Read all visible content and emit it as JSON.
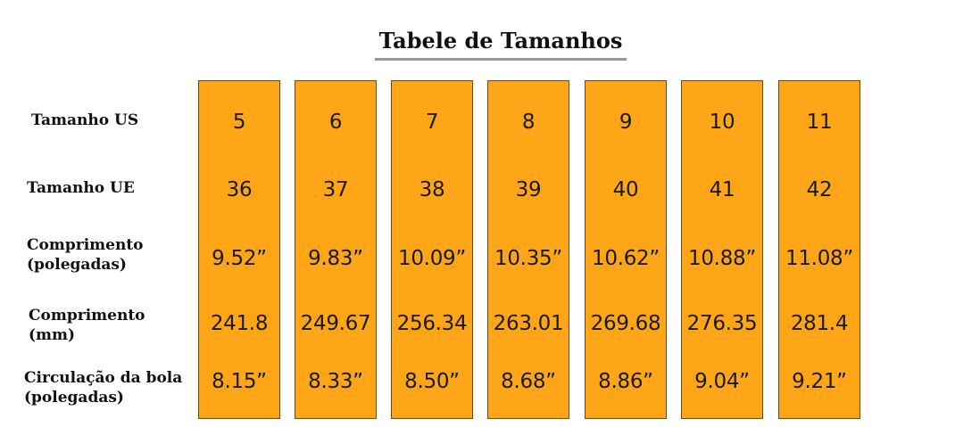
{
  "title": "Tabele de Tamanhos",
  "row_labels": [
    {
      "line1": "Tamanho US",
      "line2": ""
    },
    {
      "line1": "Tamanho UE",
      "line2": ""
    },
    {
      "line1": "Comprimento",
      "line2": "(polegadas)"
    },
    {
      "line1": "Comprimento",
      "line2": "(mm)"
    },
    {
      "line1": "Circulação da bola",
      "line2": "(polegadas)"
    }
  ],
  "columns": [
    {
      "us": "5",
      "eu": "36",
      "length_in": "9.52”",
      "length_mm": "241.8",
      "ball_in": "8.15”"
    },
    {
      "us": "6",
      "eu": "37",
      "length_in": "9.83”",
      "length_mm": "249.67",
      "ball_in": "8.33”"
    },
    {
      "us": "7",
      "eu": "38",
      "length_in": "10.09”",
      "length_mm": "256.34",
      "ball_in": "8.50”"
    },
    {
      "us": "8",
      "eu": "39",
      "length_in": "10.35”",
      "length_mm": "263.01",
      "ball_in": "8.68”"
    },
    {
      "us": "9",
      "eu": "40",
      "length_in": "10.62”",
      "length_mm": "269.68",
      "ball_in": "8.86”"
    },
    {
      "us": "10",
      "eu": "41",
      "length_in": "10.88”",
      "length_mm": "276.35",
      "ball_in": "9.04”"
    },
    {
      "us": "11",
      "eu": "42",
      "length_in": "11.08”",
      "length_mm": "281.4",
      "ball_in": "9.21”"
    }
  ],
  "colors": {
    "column_fill": "#fea617",
    "column_border": "#6b4a10",
    "title_underline": "#9a9a9a"
  }
}
